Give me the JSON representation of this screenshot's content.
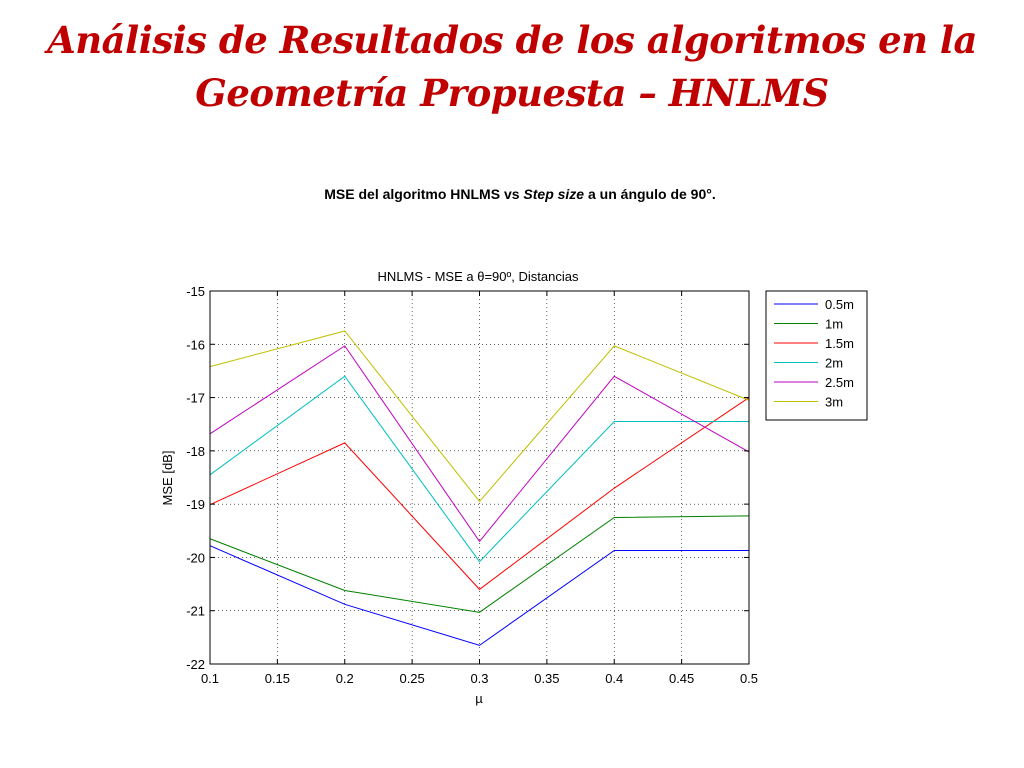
{
  "slide": {
    "title_line1": "Análisis de Resultados de los algoritmos en la",
    "title_line2": "Geometría Propuesta – HNLMS",
    "caption_part1": "MSE del algoritmo HNLMS vs ",
    "caption_italic": "Step size",
    "caption_part2": " a un ángulo de 90°."
  },
  "colors": {
    "title": "#c00000"
  },
  "chart_data": {
    "type": "line",
    "title": "HNLMS - MSE a θ=90º, Distancias",
    "xlabel": "µ",
    "ylabel": "MSE [dB]",
    "x": [
      0.1,
      0.2,
      0.3,
      0.4,
      0.5
    ],
    "xlim": [
      0.1,
      0.5
    ],
    "ylim": [
      -22,
      -15
    ],
    "xticks": [
      "0.1",
      "0.15",
      "0.2",
      "0.25",
      "0.3",
      "0.35",
      "0.4",
      "0.45",
      "0.5"
    ],
    "yticks": [
      "-15",
      "-16",
      "-17",
      "-18",
      "-19",
      "-20",
      "-21",
      "-22"
    ],
    "grid": true,
    "legend_position": "outside-right-top",
    "series": [
      {
        "name": "0.5m",
        "color": "#0000ff",
        "values": [
          -19.78,
          -20.88,
          -21.65,
          -19.87,
          -19.87
        ]
      },
      {
        "name": "1m",
        "color": "#008000",
        "values": [
          -19.65,
          -20.62,
          -21.03,
          -19.25,
          -19.22
        ]
      },
      {
        "name": "1.5m",
        "color": "#ff0000",
        "values": [
          -19.01,
          -17.85,
          -20.6,
          -18.7,
          -17.0
        ]
      },
      {
        "name": "2m",
        "color": "#00bfbf",
        "values": [
          -18.45,
          -16.6,
          -20.08,
          -17.45,
          -17.45
        ]
      },
      {
        "name": "2.5m",
        "color": "#bf00bf",
        "values": [
          -17.68,
          -16.03,
          -19.7,
          -16.6,
          -18.02
        ]
      },
      {
        "name": "3m",
        "color": "#bfbf00",
        "values": [
          -16.42,
          -15.75,
          -18.95,
          -16.03,
          -17.05
        ]
      }
    ]
  }
}
